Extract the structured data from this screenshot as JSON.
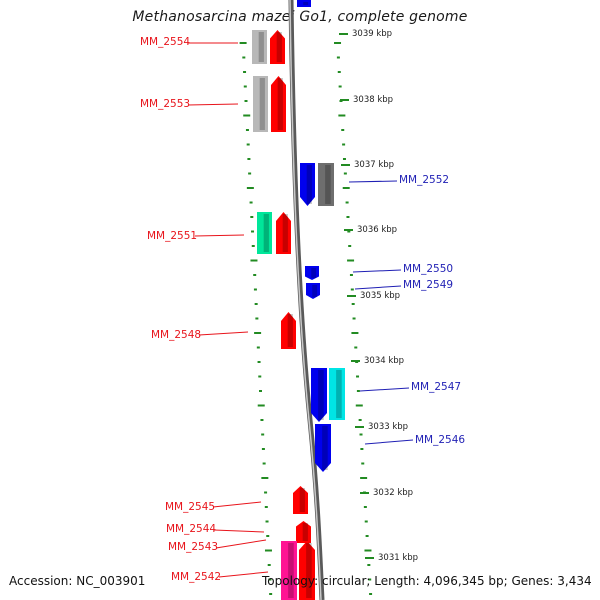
{
  "title": "Methanosarcina mazei Go1, complete genome",
  "accession_text": "Accession: NC_003901",
  "summary_text": "Topology: circular; Length: 4,096,345 bp; Genes: 3,434",
  "colors": {
    "backbone": "#8c8c8c",
    "tick": "#228b22",
    "label_left": "#e8141b",
    "label_right": "#1f1fb4",
    "grey": "#b8b8b8",
    "dark_grey": "#6e6e6e",
    "red": "#ff0000",
    "blue": "#0000ee",
    "teal": "#00e69a",
    "cyan": "#00e5e5",
    "pink": "#ff1493"
  },
  "kbp_labels": [
    "3039 kbp",
    "3038 kbp",
    "3037 kbp",
    "3036 kbp",
    "3035 kbp",
    "3034 kbp",
    "3033 kbp",
    "3032 kbp",
    "3031 kbp"
  ],
  "gene_labels": [
    {
      "name": "MM_2554",
      "side": "left"
    },
    {
      "name": "MM_2553",
      "side": "left"
    },
    {
      "name": "MM_2552",
      "side": "right"
    },
    {
      "name": "MM_2551",
      "side": "left"
    },
    {
      "name": "MM_2550",
      "side": "right"
    },
    {
      "name": "MM_2549",
      "side": "right"
    },
    {
      "name": "MM_2548",
      "side": "left"
    },
    {
      "name": "MM_2547",
      "side": "right"
    },
    {
      "name": "MM_2546",
      "side": "right"
    },
    {
      "name": "MM_2545",
      "side": "left"
    },
    {
      "name": "MM_2544",
      "side": "left"
    },
    {
      "name": "MM_2543",
      "side": "left"
    },
    {
      "name": "MM_2542",
      "side": "left"
    }
  ]
}
